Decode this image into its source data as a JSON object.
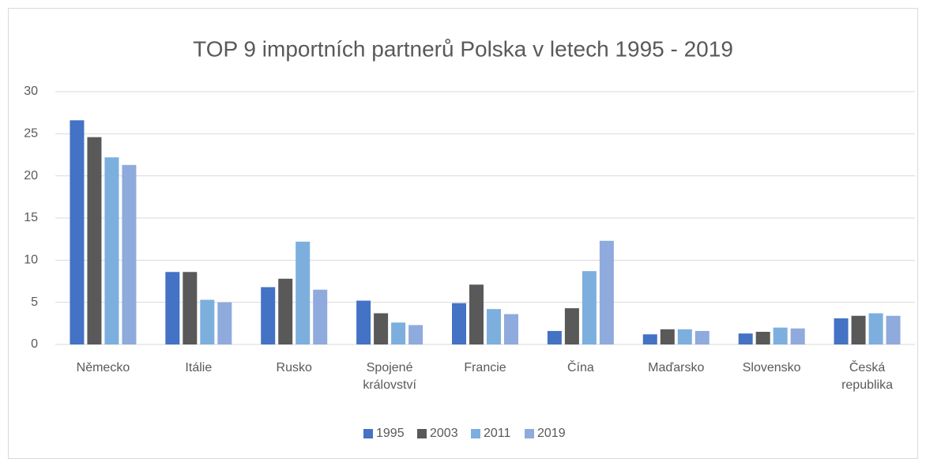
{
  "chart_data": {
    "type": "bar",
    "title": "TOP 9 importních partnerů Polska v letech 1995 - 2019",
    "categories": [
      "Německo",
      "Itálie",
      "Rusko",
      "Spojené království",
      "Francie",
      "Čína",
      "Maďarsko",
      "Slovensko",
      "Česká republika"
    ],
    "series": [
      {
        "name": "1995",
        "color": "#4472c4",
        "values": [
          26.6,
          8.6,
          6.8,
          5.2,
          4.9,
          1.6,
          1.2,
          1.3,
          3.1
        ]
      },
      {
        "name": "2003",
        "color": "#595959",
        "values": [
          24.6,
          8.6,
          7.8,
          3.7,
          7.1,
          4.3,
          1.8,
          1.5,
          3.4
        ]
      },
      {
        "name": "2011",
        "color": "#7cafdd",
        "values": [
          22.2,
          5.3,
          12.2,
          2.6,
          4.2,
          8.7,
          1.8,
          2.0,
          3.7
        ]
      },
      {
        "name": "2019",
        "color": "#8faadc",
        "values": [
          21.3,
          5.0,
          6.5,
          2.3,
          3.6,
          12.3,
          1.6,
          1.9,
          3.4
        ]
      }
    ],
    "ylim": [
      0,
      30
    ],
    "yticks": [
      0,
      5,
      10,
      15,
      20,
      25,
      30
    ],
    "grid": true,
    "legend": "bottom"
  }
}
